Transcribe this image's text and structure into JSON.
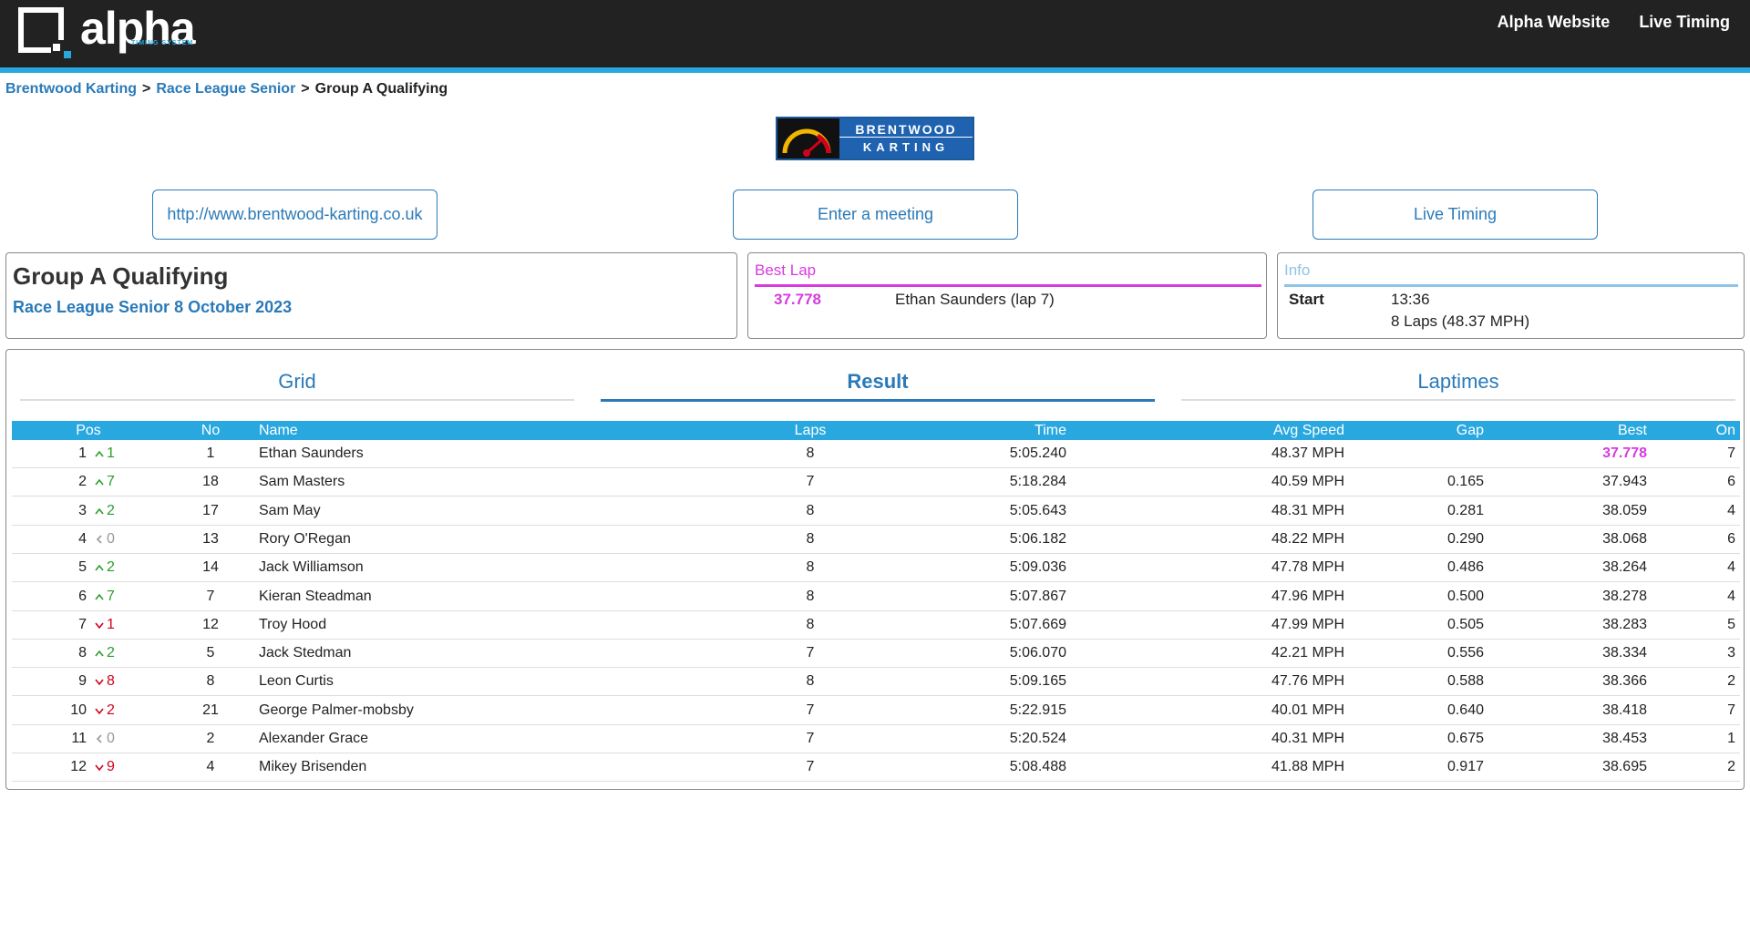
{
  "header": {
    "brand": "alpha",
    "brand_sub": "TIMING SYSTEM",
    "nav": [
      "Alpha Website",
      "Live Timing"
    ]
  },
  "breadcrumb": {
    "items": [
      "Brentwood Karting",
      "Race League Senior",
      "Group A Qualifying"
    ],
    "separator": ">"
  },
  "venue_logo": {
    "line1": "BRENTWOOD",
    "line2": "KARTING"
  },
  "buttons": [
    "http://www.brentwood-karting.co.uk",
    "Enter a meeting",
    "Live Timing"
  ],
  "event": {
    "title": "Group A Qualifying",
    "subtitle": "Race League Senior 8 October 2023"
  },
  "best_lap": {
    "heading": "Best Lap",
    "time": "37.778",
    "driver": "Ethan Saunders (lap 7)"
  },
  "info": {
    "heading": "Info",
    "label": "Start",
    "time": "13:36",
    "laps": "8 Laps (48.37 MPH)"
  },
  "tabs": {
    "items": [
      "Grid",
      "Result",
      "Laptimes"
    ],
    "active": 1
  },
  "table": {
    "columns": [
      "Pos",
      "No",
      "Name",
      "Laps",
      "Time",
      "Avg Speed",
      "Gap",
      "Best",
      "On"
    ],
    "rows": [
      {
        "pos": 1,
        "dir": "up",
        "change": 1,
        "no": 1,
        "name": "Ethan Saunders",
        "laps": 8,
        "time": "5:05.240",
        "speed": "48.37 MPH",
        "gap": null,
        "best": "37.778",
        "on": 7,
        "fastest": true
      },
      {
        "pos": 2,
        "dir": "up",
        "change": 7,
        "no": 18,
        "name": "Sam Masters",
        "laps": 7,
        "time": "5:18.284",
        "speed": "40.59 MPH",
        "gap": "0.165",
        "best": "37.943",
        "on": 6
      },
      {
        "pos": 3,
        "dir": "up",
        "change": 2,
        "no": 17,
        "name": "Sam May",
        "laps": 8,
        "time": "5:05.643",
        "speed": "48.31 MPH",
        "gap": "0.281",
        "best": "38.059",
        "on": 4
      },
      {
        "pos": 4,
        "dir": "same",
        "change": 0,
        "no": 13,
        "name": "Rory O'Regan",
        "laps": 8,
        "time": "5:06.182",
        "speed": "48.22 MPH",
        "gap": "0.290",
        "best": "38.068",
        "on": 6
      },
      {
        "pos": 5,
        "dir": "up",
        "change": 2,
        "no": 14,
        "name": "Jack Williamson",
        "laps": 8,
        "time": "5:09.036",
        "speed": "47.78 MPH",
        "gap": "0.486",
        "best": "38.264",
        "on": 4
      },
      {
        "pos": 6,
        "dir": "up",
        "change": 7,
        "no": 7,
        "name": "Kieran Steadman",
        "laps": 8,
        "time": "5:07.867",
        "speed": "47.96 MPH",
        "gap": "0.500",
        "best": "38.278",
        "on": 4
      },
      {
        "pos": 7,
        "dir": "down",
        "change": 1,
        "no": 12,
        "name": "Troy Hood",
        "laps": 8,
        "time": "5:07.669",
        "speed": "47.99 MPH",
        "gap": "0.505",
        "best": "38.283",
        "on": 5
      },
      {
        "pos": 8,
        "dir": "up",
        "change": 2,
        "no": 5,
        "name": "Jack Stedman",
        "laps": 7,
        "time": "5:06.070",
        "speed": "42.21 MPH",
        "gap": "0.556",
        "best": "38.334",
        "on": 3
      },
      {
        "pos": 9,
        "dir": "down",
        "change": 8,
        "no": 8,
        "name": "Leon Curtis",
        "laps": 8,
        "time": "5:09.165",
        "speed": "47.76 MPH",
        "gap": "0.588",
        "best": "38.366",
        "on": 2
      },
      {
        "pos": 10,
        "dir": "down",
        "change": 2,
        "no": 21,
        "name": "George Palmer-mobsby",
        "laps": 7,
        "time": "5:22.915",
        "speed": "40.01 MPH",
        "gap": "0.640",
        "best": "38.418",
        "on": 7
      },
      {
        "pos": 11,
        "dir": "same",
        "change": 0,
        "no": 2,
        "name": "Alexander Grace",
        "laps": 7,
        "time": "5:20.524",
        "speed": "40.31 MPH",
        "gap": "0.675",
        "best": "38.453",
        "on": 1
      },
      {
        "pos": 12,
        "dir": "down",
        "change": 9,
        "no": 4,
        "name": "Mikey Brisenden",
        "laps": 7,
        "time": "5:08.488",
        "speed": "41.88 MPH",
        "gap": "0.917",
        "best": "38.695",
        "on": 2
      }
    ]
  }
}
